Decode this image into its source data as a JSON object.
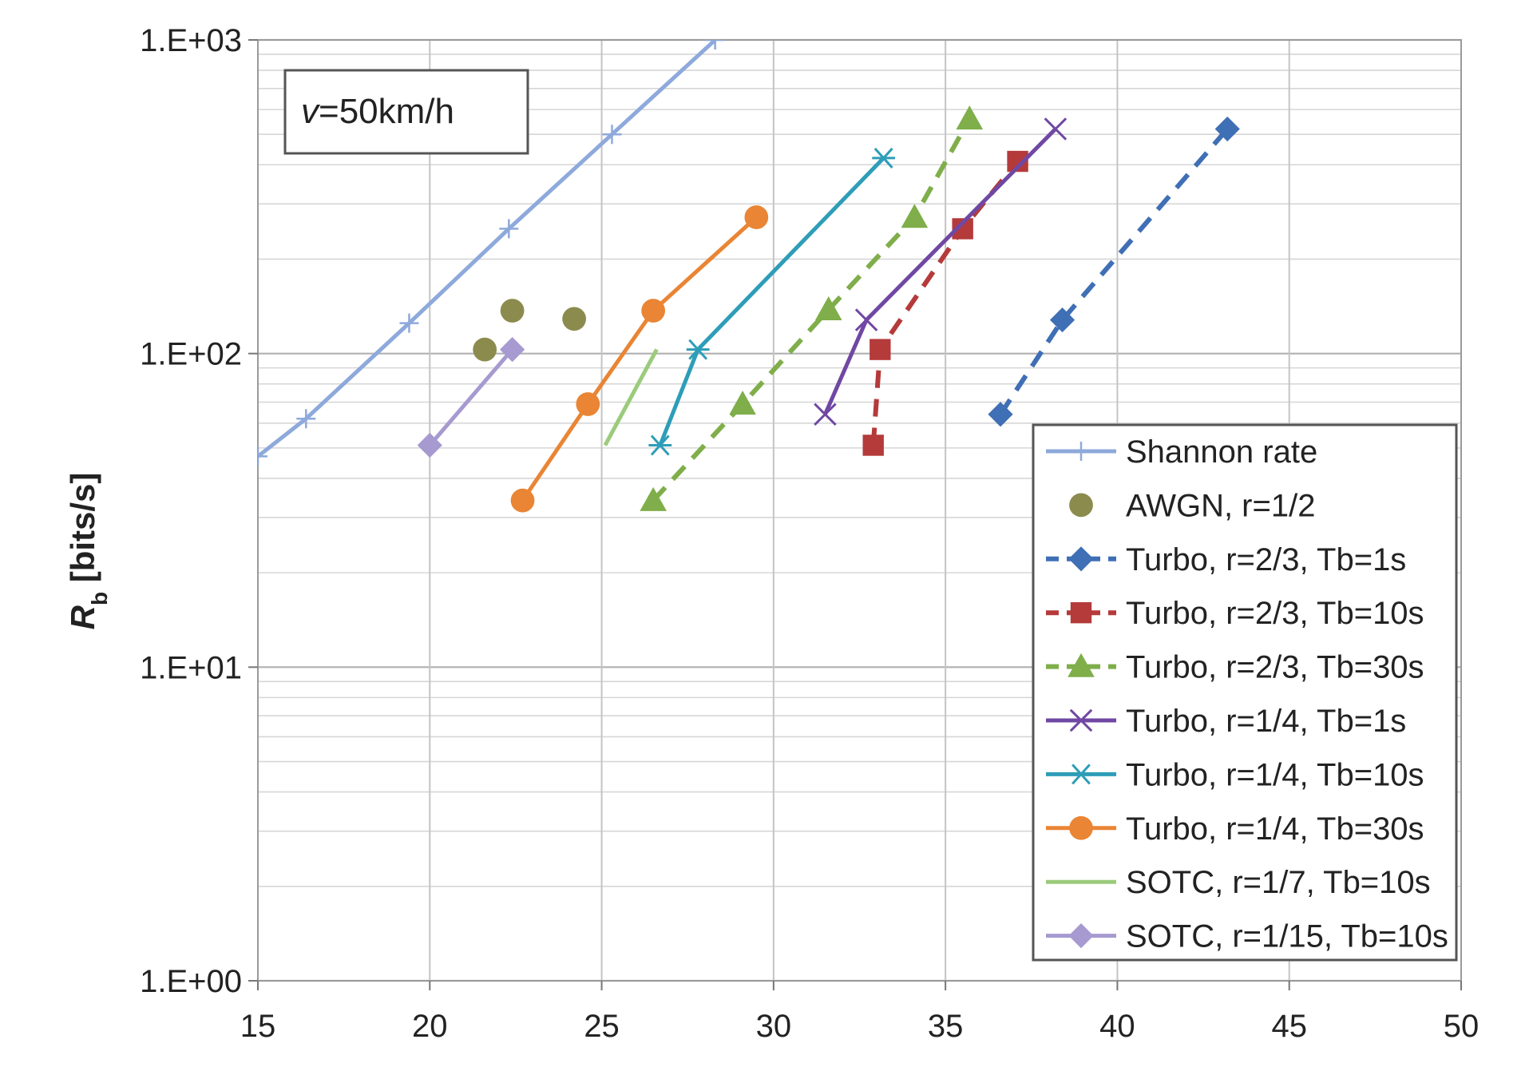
{
  "chart_data": {
    "type": "line",
    "title": "",
    "xlabel": "",
    "ylabel": "R_b [bits/s]",
    "ylabel_main": "R",
    "ylabel_sub": "b",
    "ylabel_rest": " [bits/s]",
    "xscale": "linear",
    "yscale": "log",
    "xlim": [
      15,
      50
    ],
    "ylim": [
      1,
      1000
    ],
    "xticks": [
      15,
      20,
      25,
      30,
      35,
      40,
      45,
      50
    ],
    "xtick_labels": [
      "15",
      "20",
      "25",
      "30",
      "35",
      "40",
      "45",
      "50"
    ],
    "yticks": [
      1,
      10,
      100,
      1000
    ],
    "ytick_labels": [
      "1.E+00",
      "1.E+01",
      "1.E+02",
      "1.E+03"
    ],
    "grid": true,
    "legend_position": "bottom-right",
    "annotation": {
      "italic": "v",
      "text": "=50km/h",
      "full": "v=50km/h"
    },
    "series": [
      {
        "name": "Shannon rate",
        "color": "#8EA9DB",
        "dash": "solid",
        "marker": "plus",
        "show_line": true,
        "points": [
          [
            15,
            47
          ],
          [
            16.4,
            62
          ],
          [
            19.4,
            125
          ],
          [
            22.3,
            250
          ],
          [
            25.3,
            500
          ],
          [
            28.3,
            1000
          ]
        ]
      },
      {
        "name": "AWGN, r=1/2",
        "color": "#8B8B4E",
        "dash": "none",
        "marker": "circle",
        "show_line": false,
        "points": [
          [
            21.6,
            103
          ],
          [
            22.4,
            137
          ],
          [
            24.2,
            129
          ]
        ]
      },
      {
        "name": "Turbo, r=2/3, Tb=1s",
        "color": "#3F6FB5",
        "dash": "dashed",
        "marker": "diamond",
        "show_line": true,
        "points": [
          [
            36.6,
            64
          ],
          [
            38.4,
            128
          ],
          [
            43.2,
            520
          ]
        ]
      },
      {
        "name": "Turbo, r=2/3, Tb=10s",
        "color": "#B53A3A",
        "dash": "dashed",
        "marker": "square",
        "show_line": true,
        "points": [
          [
            32.9,
            51
          ],
          [
            33.1,
            103
          ],
          [
            35.5,
            250
          ],
          [
            37.1,
            410
          ]
        ]
      },
      {
        "name": "Turbo, r=2/3, Tb=30s",
        "color": "#7FAE4A",
        "dash": "dashed",
        "marker": "triangle",
        "show_line": true,
        "points": [
          [
            26.5,
            34
          ],
          [
            29.1,
            69
          ],
          [
            31.6,
            138
          ],
          [
            34.1,
            272
          ],
          [
            35.7,
            560
          ]
        ]
      },
      {
        "name": "Turbo, r=1/4, Tb=1s",
        "color": "#7048A3",
        "dash": "solid",
        "marker": "x",
        "show_line": true,
        "points": [
          [
            31.5,
            64
          ],
          [
            32.7,
            128
          ],
          [
            38.2,
            520
          ]
        ]
      },
      {
        "name": "Turbo, r=1/4, Tb=10s",
        "color": "#2E9DB8",
        "dash": "solid",
        "marker": "asterisk",
        "show_line": true,
        "points": [
          [
            26.7,
            51
          ],
          [
            27.8,
            103
          ],
          [
            33.2,
            420
          ]
        ]
      },
      {
        "name": "Turbo, r=1/4, Tb=30s",
        "color": "#E98534",
        "dash": "solid",
        "marker": "circle",
        "show_line": true,
        "points": [
          [
            22.7,
            34
          ],
          [
            24.6,
            69
          ],
          [
            26.5,
            137
          ],
          [
            29.5,
            272
          ]
        ]
      },
      {
        "name": "SOTC, r=1/7, Tb=10s",
        "color": "#9BCB7B",
        "dash": "solid",
        "marker": "none",
        "show_line": true,
        "points": [
          [
            25.1,
            51
          ],
          [
            26.6,
            103
          ]
        ]
      },
      {
        "name": "SOTC, r=1/15, Tb=10s",
        "color": "#A69AD0",
        "dash": "solid",
        "marker": "diamond",
        "show_line": true,
        "points": [
          [
            20,
            51
          ],
          [
            22.4,
            103
          ]
        ]
      }
    ]
  }
}
